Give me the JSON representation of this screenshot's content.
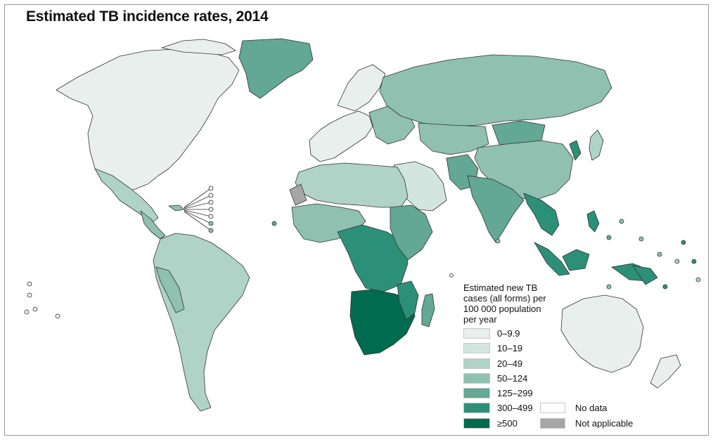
{
  "title": "Estimated TB incidence rates, 2014",
  "legend": {
    "title_lines": [
      "Estimated new TB",
      "cases (all forms) per",
      "100 000 population",
      "per year"
    ],
    "bins": [
      {
        "label": "0–9.9",
        "color": "#e8efed"
      },
      {
        "label": "10–19",
        "color": "#d2e6df"
      },
      {
        "label": "20–49",
        "color": "#afd3c6"
      },
      {
        "label": "50–124",
        "color": "#8fc0b0"
      },
      {
        "label": "125–299",
        "color": "#63a894"
      },
      {
        "label": "300–499",
        "color": "#2c9079"
      },
      {
        "label": "≥500",
        "color": "#006b4f"
      }
    ],
    "no_data": {
      "label": "No data",
      "color": "#ffffff"
    },
    "not_applicable": {
      "label": "Not applicable",
      "color": "#a6a6a6"
    }
  }
}
